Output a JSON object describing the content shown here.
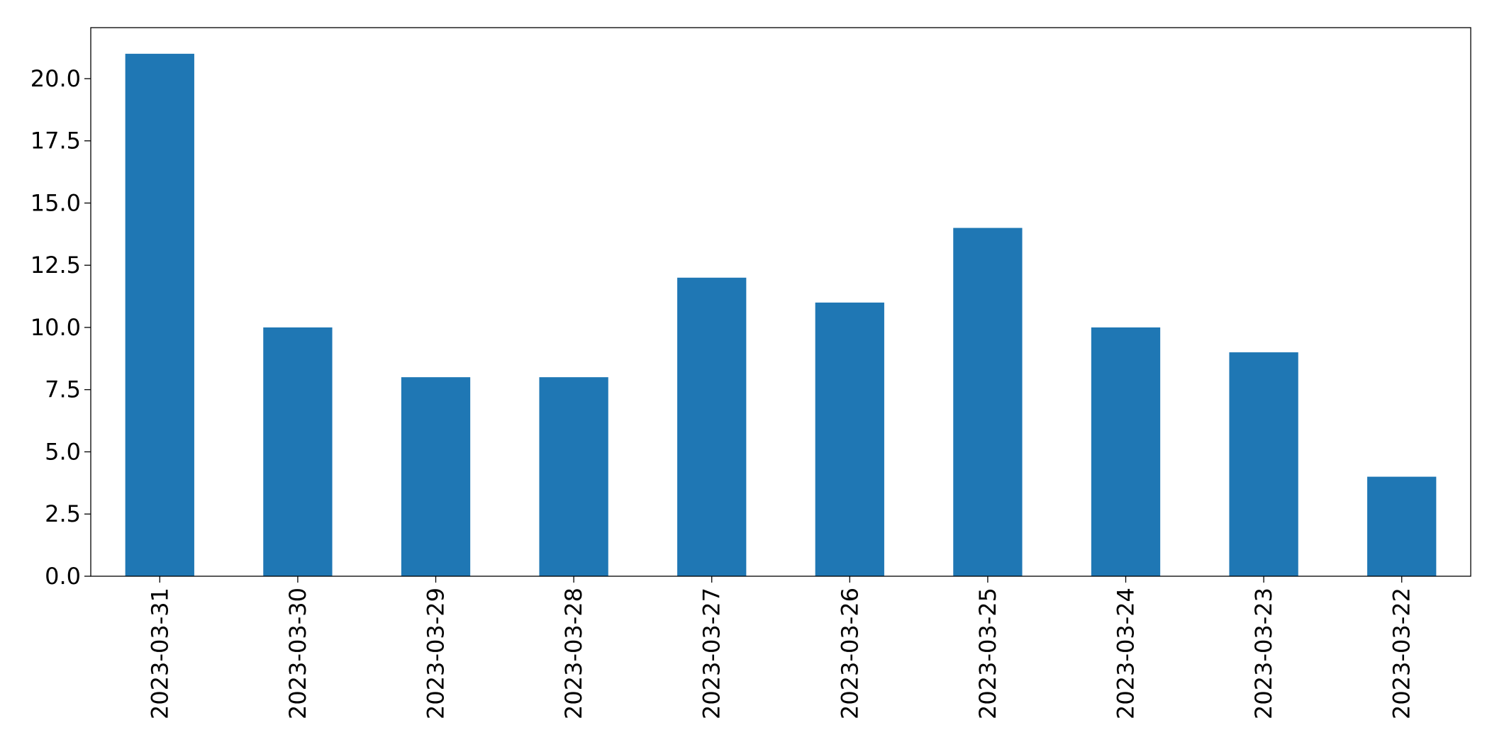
{
  "chart_data": {
    "type": "bar",
    "categories": [
      "2023-03-31",
      "2023-03-30",
      "2023-03-29",
      "2023-03-28",
      "2023-03-27",
      "2023-03-26",
      "2023-03-25",
      "2023-03-24",
      "2023-03-23",
      "2023-03-22"
    ],
    "values": [
      21,
      10,
      8,
      8,
      12,
      11,
      14,
      10,
      9,
      4
    ],
    "color": "#1f77b4",
    "ylim": [
      0,
      22.05
    ],
    "yticks": [
      {
        "value": 0,
        "label": "0.0"
      },
      2.5,
      {
        "value": 5,
        "label": "5.0"
      },
      7.5,
      {
        "value": 10,
        "label": "10.0"
      },
      12.5,
      {
        "value": 15,
        "label": "15.0"
      },
      17.5,
      {
        "value": 20,
        "label": "20.0"
      }
    ],
    "grid": false
  }
}
